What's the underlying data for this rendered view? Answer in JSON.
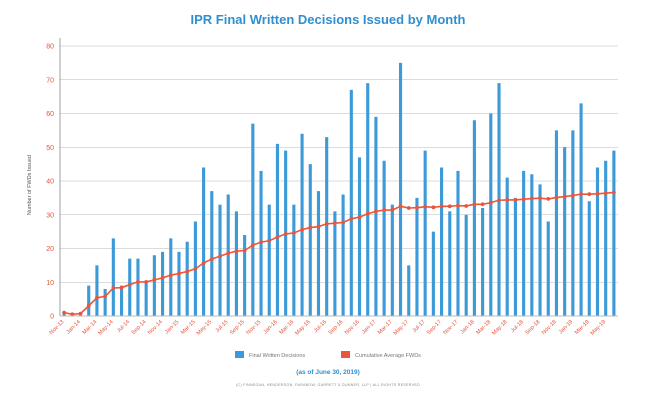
{
  "chart_data": {
    "type": "bar",
    "title": "IPR Final Written Decisions Issued by Month",
    "subtitle": "(as of June 30, 2019)",
    "footer": "(C) FINNEGAN, HENDERSON, FARABOW, GARRETT & DUNNER, LLP | ALL RIGHTS RESERVED",
    "xlabel": "",
    "ylabel": "Number of FWDs Issued",
    "ylim": [
      0,
      80
    ],
    "yticks": [
      "0",
      "10",
      "20",
      "30",
      "40",
      "50",
      "60",
      "70",
      "80"
    ],
    "grid": true,
    "legend_position": "bottom",
    "colors": {
      "bars": "#3d9ad8",
      "line": "#e8573d",
      "axis": "#bbbbbb"
    },
    "categories": [
      "Nov-13",
      "Dec-13",
      "Jan-14",
      "Feb-14",
      "Mar-14",
      "Apr-14",
      "May-14",
      "Jun-14",
      "Jul-14",
      "Aug-14",
      "Sep-14",
      "Oct-14",
      "Nov-14",
      "Dec-14",
      "Jan-15",
      "Feb-15",
      "Mar-15",
      "Apr-15",
      "May-15",
      "Jun-15",
      "Jul-15",
      "Aug-15",
      "Sep-15",
      "Oct-15",
      "Nov-15",
      "Dec-15",
      "Jan-16",
      "Feb-16",
      "Mar-16",
      "Apr-16",
      "May-16",
      "Jun-16",
      "Jul-16",
      "Aug-16",
      "Sep-16",
      "Oct-16",
      "Nov-16",
      "Dec-16",
      "Jan-17",
      "Feb-17",
      "Mar-17",
      "Apr-17",
      "May-17",
      "Jun-17",
      "Jul-17",
      "Aug-17",
      "Sep-17",
      "Oct-17",
      "Nov-17",
      "Dec-17",
      "Jan-18",
      "Feb-18",
      "Mar-18",
      "Apr-18",
      "May-18",
      "Jun-18",
      "Jul-18",
      "Aug-18",
      "Sep-18",
      "Oct-18",
      "Nov-18",
      "Dec-18",
      "Jan-19",
      "Feb-19",
      "Mar-19",
      "Apr-19",
      "May-19",
      "Jun-19"
    ],
    "xtick_labels": [
      "Nov-13",
      "Jan-14",
      "Mar-14",
      "May-14",
      "Jul-14",
      "Sep-14",
      "Nov-14",
      "Jan-15",
      "Mar-15",
      "May-15",
      "Jul-15",
      "Sep-15",
      "Nov-15",
      "Jan-16",
      "Mar-16",
      "May-16",
      "Jul-16",
      "Sep-16",
      "Nov-16",
      "Jan-17",
      "Mar-17",
      "May-17",
      "Jul-17",
      "Sep-17",
      "Nov-17",
      "Jan-18",
      "Mar-18",
      "May-18",
      "Jul-18",
      "Sep-18",
      "Nov-18",
      "Jan-19",
      "Mar-19",
      "May-19"
    ],
    "series": [
      {
        "name": "Final Written Decisions",
        "type": "bar",
        "values": [
          1,
          0,
          1,
          9,
          15,
          8,
          23,
          9,
          17,
          17,
          10,
          18,
          19,
          23,
          19,
          22,
          28,
          44,
          37,
          33,
          36,
          31,
          24,
          57,
          43,
          33,
          51,
          49,
          33,
          54,
          45,
          37,
          53,
          31,
          36,
          67,
          47,
          69,
          59,
          46,
          33,
          75,
          15,
          35,
          49,
          25,
          44,
          31,
          43,
          30,
          58,
          32,
          60,
          69,
          41,
          35,
          43,
          42,
          39,
          28,
          55,
          50,
          55,
          63,
          34,
          44,
          46,
          49
        ],
        "labels": []
      },
      {
        "name": "Cumulative Average FWDs",
        "type": "line",
        "values": [
          1,
          0.5,
          0.7,
          3,
          5.4,
          5.8,
          8.3,
          8.4,
          9.3,
          10.1,
          10.1,
          10.7,
          11.3,
          12.1,
          12.6,
          13.2,
          14,
          15.7,
          16.9,
          17.7,
          18.6,
          19.2,
          19.4,
          21,
          21.9,
          22.3,
          23.4,
          24.3,
          24.6,
          25.6,
          26.2,
          26.5,
          27.3,
          27.5,
          27.7,
          28.8,
          29.3,
          30.3,
          31,
          31.4,
          31.4,
          32.5,
          32,
          32.1,
          32.4,
          32.2,
          32.5,
          32.5,
          32.7,
          32.6,
          33.1,
          33.1,
          33.6,
          34.3,
          34.4,
          34.4,
          34.6,
          34.8,
          34.9,
          34.7,
          35.1,
          35.4,
          35.7,
          36.1,
          36.1,
          36.2,
          36.4,
          36.6
        ],
        "labels": []
      }
    ]
  }
}
